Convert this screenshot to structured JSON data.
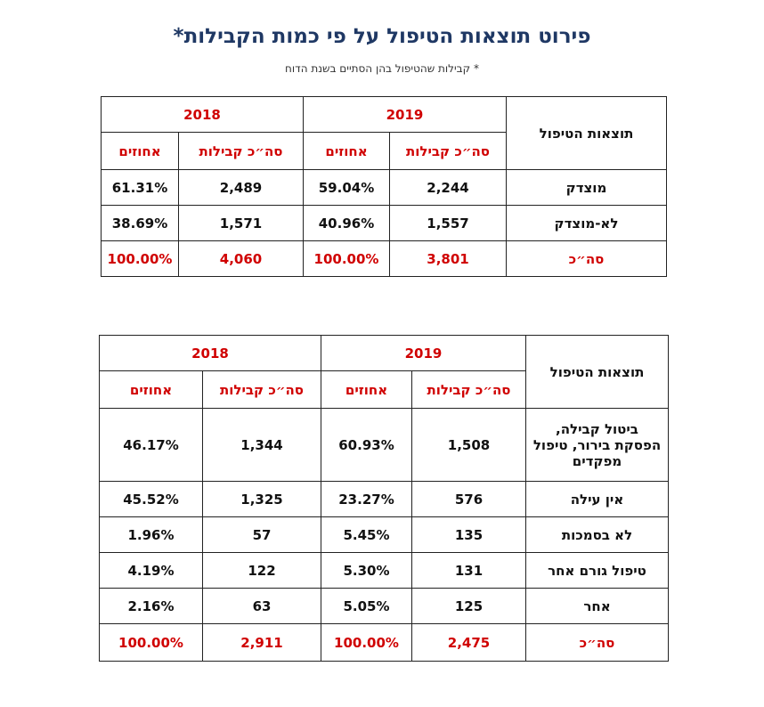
{
  "title": "פירוט תוצאות הטיפול על פי כמות הקבילות*",
  "subtitle": "* קבילות שהטיפול בהן הסתיים בשנת הדוח",
  "tables": [
    {
      "header": {
        "row_label": "תוצאות הטיפול",
        "years": [
          "2019",
          "2018"
        ],
        "columns": [
          "סה״כ קבילות",
          "אחוזים",
          "סה״כ קבילות",
          "אחוזים"
        ]
      },
      "rows": [
        [
          "מוצדק",
          "2,244",
          "59.04%",
          "2,489",
          "61.31%"
        ],
        [
          "לא-מוצדק",
          "1,557",
          "40.96%",
          "1,571",
          "38.69%"
        ],
        [
          "סה״כ",
          "3,801",
          "100.00%",
          "4,060",
          "100.00%"
        ]
      ]
    },
    {
      "header": {
        "row_label": "תוצאות הטיפול",
        "years": [
          "2019",
          "2018"
        ],
        "columns": [
          "סה״כ קבילות",
          "אחוזים",
          "סה״כ קבילות",
          "אחוזים"
        ]
      },
      "rows": [
        [
          "ביטול קבילה, הפסקת בירור, טיפול מפקדים",
          "1,508",
          "60.93%",
          "1,344",
          "46.17%"
        ],
        [
          "אין עילה",
          "576",
          "23.27%",
          "1,325",
          "45.52%"
        ],
        [
          "לא בסמכות",
          "135",
          "5.45%",
          "57",
          "1.96%"
        ],
        [
          "טיפול גורם אחר",
          "131",
          "5.30%",
          "122",
          "4.19%"
        ],
        [
          "אחר",
          "125",
          "5.05%",
          "63",
          "2.16%"
        ],
        [
          "סה״כ",
          "2,475",
          "100.00%",
          "2,911",
          "100.00%"
        ]
      ]
    }
  ]
}
